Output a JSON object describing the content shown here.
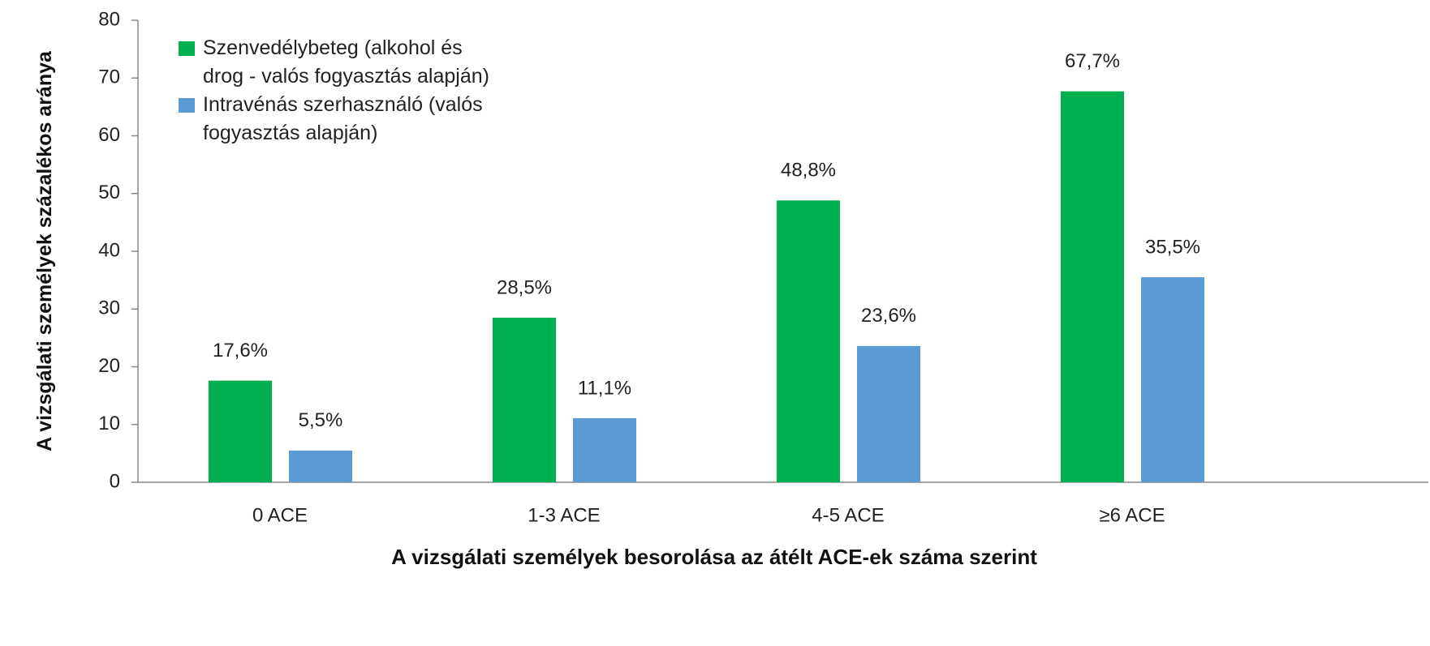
{
  "chart_data": {
    "type": "bar",
    "x_label": "A vizsgálati személyek besorolása az átélt ACE-ek száma szerint",
    "y_label": "A vizsgálati személyek százalékos aránya",
    "categories": [
      "0 ACE",
      "1-3 ACE",
      "4-5 ACE",
      "≥6 ACE"
    ],
    "series": [
      {
        "name": "Szenvedélybeteg (alkohol és drog - valós fogyasztás alapján)",
        "color": "#00b050",
        "values": [
          17.6,
          28.5,
          48.8,
          67.7
        ],
        "value_labels": [
          "17,6%",
          "28,5%",
          "48,8%",
          "67,7%"
        ]
      },
      {
        "name": "Intravénás szerhasználó (valós fogyasztás alapján)",
        "color": "#5b9bd5",
        "values": [
          5.5,
          11.1,
          23.6,
          35.5
        ],
        "value_labels": [
          "5,5%",
          "11,1%",
          "23,6%",
          "35,5%"
        ]
      }
    ],
    "ylim": [
      0,
      80
    ],
    "yticks": [
      0,
      10,
      20,
      30,
      40,
      50,
      60,
      70,
      80
    ],
    "grid": false,
    "legend": "upper left"
  }
}
